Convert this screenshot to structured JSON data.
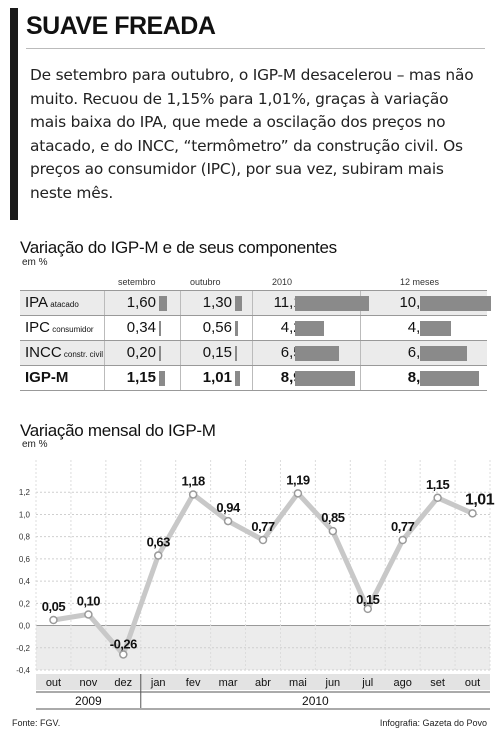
{
  "headline": "SUAVE FREADA",
  "lead": "De setembro para outubro, o IGP-M desacelerou – mas não muito. Recuou de 1,15% para 1,01%, graças à variação mais baixa do IPA, que mede a oscilação dos preços no atacado, e do INCC, “termômetro” da construção civil. Os preços ao consumidor (IPC), por sua vez, subiram mais neste mês.",
  "table": {
    "title": "Variação do IGP-M e de seus componentes",
    "unit": "em %",
    "columns": [
      "setembro",
      "outubro",
      "2010",
      "12 meses"
    ],
    "rows": [
      {
        "label": "IPA",
        "sublabel": "atacado",
        "values": [
          "1,60",
          "1,30",
          "11,14",
          "10,67"
        ],
        "numbers": [
          1.6,
          1.3,
          11.14,
          10.67
        ],
        "bold": false
      },
      {
        "label": "IPC",
        "sublabel": "consumidor",
        "values": [
          "0,34",
          "0,56",
          "4,28",
          "4,65"
        ],
        "numbers": [
          0.34,
          0.56,
          4.28,
          4.65
        ],
        "bold": false
      },
      {
        "label": "INCC",
        "sublabel": "constr. civil",
        "values": [
          "0,20",
          "0,15",
          "6,56",
          "6,97"
        ],
        "numbers": [
          0.2,
          0.15,
          6.56,
          6.97
        ],
        "bold": false
      },
      {
        "label": "IGP-M",
        "sublabel": "",
        "values": [
          "1,15",
          "1,01",
          "8,98",
          "8,81"
        ],
        "numbers": [
          1.15,
          1.01,
          8.98,
          8.81
        ],
        "bold": true
      }
    ]
  },
  "chart_data": {
    "type": "line",
    "title": "Variação mensal do IGP-M",
    "ylabel": "em %",
    "x": [
      "out",
      "nov",
      "dez",
      "jan",
      "fev",
      "mar",
      "abr",
      "mai",
      "jun",
      "jul",
      "ago",
      "set",
      "out"
    ],
    "values": [
      0.05,
      0.1,
      -0.26,
      0.63,
      1.18,
      0.94,
      0.77,
      1.19,
      0.85,
      0.15,
      0.77,
      1.15,
      1.01
    ],
    "value_labels": [
      "0,05",
      "0,10",
      "-0,26",
      "0,63",
      "1,18",
      "0,94",
      "0,77",
      "1,19",
      "0,85",
      "0,15",
      "0,77",
      "1,15",
      "1,01"
    ],
    "ylim": [
      -0.4,
      1.4
    ],
    "yticks": [
      -0.4,
      -0.2,
      0.0,
      0.2,
      0.4,
      0.6,
      0.8,
      1.0,
      1.2
    ],
    "ytick_labels": [
      "-0,4",
      "-0,2",
      "0,0",
      "0,2",
      "0,4",
      "0,6",
      "0,8",
      "1,0",
      "1,2"
    ],
    "years": [
      {
        "label": "2009",
        "months": 3
      },
      {
        "label": "2010",
        "months": 10
      }
    ],
    "grid": true,
    "line_color": "#c8c8c8"
  },
  "footer": {
    "source": "Fonte: FGV.",
    "credit": "Infografia: Gazeta do Povo"
  }
}
